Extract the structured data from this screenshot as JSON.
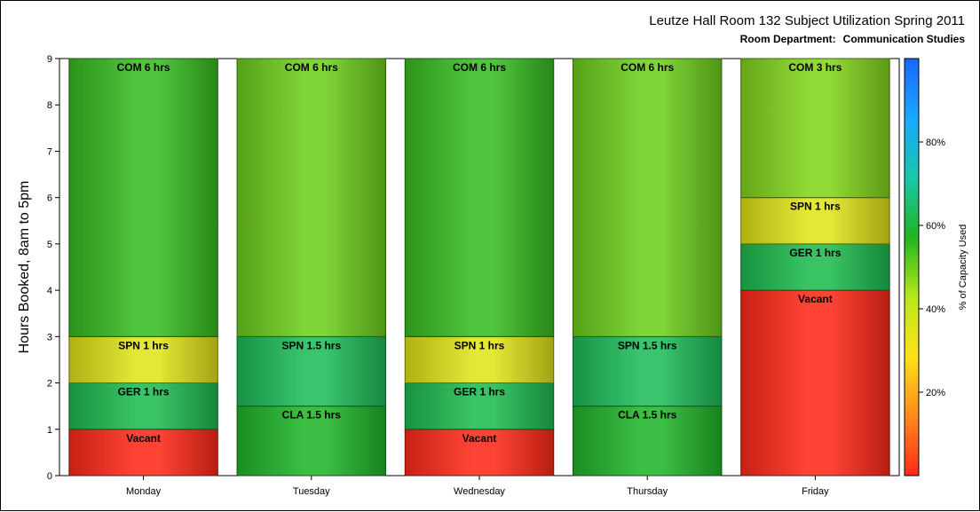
{
  "chart_data": {
    "type": "bar",
    "title": "Leutze Hall Room 132 Subject Utilization Spring 2011",
    "subtitle_label": "Room Department:",
    "subtitle_value": "Communication Studies",
    "xlabel": "",
    "ylabel": "Hours Booked, 8am to 5pm",
    "ylim": [
      0,
      9
    ],
    "yticks": [
      "0",
      "1",
      "2",
      "3",
      "4",
      "5",
      "6",
      "7",
      "8",
      "9"
    ],
    "categories": [
      "Monday",
      "Tuesday",
      "Wednesday",
      "Thursday",
      "Friday"
    ],
    "stacks": [
      [
        {
          "label": "Vacant",
          "hours": 1,
          "capacity": 0
        },
        {
          "label": "GER 1 hrs",
          "hours": 1,
          "capacity": 62
        },
        {
          "label": "SPN 1 hrs",
          "hours": 1,
          "capacity": 35
        },
        {
          "label": "COM 6 hrs",
          "hours": 6,
          "capacity": 55
        }
      ],
      [
        {
          "label": "CLA 1.5 hrs",
          "hours": 1.5,
          "capacity": 58
        },
        {
          "label": "SPN 1.5 hrs",
          "hours": 1.5,
          "capacity": 63
        },
        {
          "label": "COM 6 hrs",
          "hours": 6,
          "capacity": 50
        }
      ],
      [
        {
          "label": "Vacant",
          "hours": 1,
          "capacity": 0
        },
        {
          "label": "GER 1 hrs",
          "hours": 1,
          "capacity": 62
        },
        {
          "label": "SPN 1 hrs",
          "hours": 1,
          "capacity": 35
        },
        {
          "label": "COM 6 hrs",
          "hours": 6,
          "capacity": 55
        }
      ],
      [
        {
          "label": "CLA 1.5 hrs",
          "hours": 1.5,
          "capacity": 58
        },
        {
          "label": "SPN 1.5 hrs",
          "hours": 1.5,
          "capacity": 63
        },
        {
          "label": "COM 6 hrs",
          "hours": 6,
          "capacity": 50
        }
      ],
      [
        {
          "label": "Vacant",
          "hours": 4,
          "capacity": 0
        },
        {
          "label": "GER 1 hrs",
          "hours": 1,
          "capacity": 62
        },
        {
          "label": "SPN 1 hrs",
          "hours": 1,
          "capacity": 35
        },
        {
          "label": "COM 3 hrs",
          "hours": 3,
          "capacity": 48
        }
      ]
    ],
    "colorbar": {
      "title": "% of Capacity Used",
      "range": [
        0,
        100
      ],
      "ticks": [
        20,
        40,
        60,
        80
      ],
      "tick_labels": [
        "20%",
        "40%",
        "60%",
        "80%"
      ],
      "stops": [
        "#ff2a1a",
        "#ff8a1a",
        "#ffe11a",
        "#b8e81a",
        "#22b422",
        "#18c8a8",
        "#1aa8ff",
        "#1a66ff"
      ]
    },
    "grid": false,
    "legend": "colorbar right"
  }
}
